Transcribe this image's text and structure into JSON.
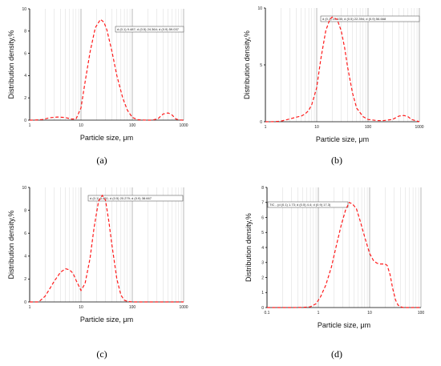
{
  "chart_data": [
    {
      "type": "line",
      "panel_label": "a",
      "x": [
        1,
        1.3,
        1.8,
        2.5,
        3.5,
        5,
        6.5,
        8,
        10,
        12,
        15,
        19,
        24,
        28,
        32,
        40,
        50,
        65,
        80,
        100,
        125,
        150,
        200,
        250,
        320,
        400,
        500,
        600,
        700,
        800,
        1000
      ],
      "series": [
        {
          "values": [
            0,
            0.01,
            0.06,
            0.22,
            0.28,
            0.23,
            0.1,
            0.1,
            1.1,
            3.4,
            6.1,
            8.3,
            9.05,
            8.8,
            8.1,
            6.2,
            4.0,
            2.0,
            0.9,
            0.25,
            0.05,
            0.01,
            0,
            0,
            0.15,
            0.55,
            0.65,
            0.45,
            0.12,
            0.02,
            0
          ]
        }
      ],
      "xlabel": "Particle size, μm",
      "ylabel": "Distribution density,%",
      "xscale": "log",
      "xlim": [
        1,
        1000
      ],
      "ylim": [
        0,
        10
      ],
      "x_ticks": [
        "1",
        "10",
        "100",
        "1000"
      ],
      "y_ticks": [
        "0",
        "2",
        "4",
        "6",
        "8",
        "10"
      ],
      "legend": "d (0.1) 9.487; d (0.5) 24.364; d (0.9) 59.037",
      "grid": true
    },
    {
      "type": "line",
      "panel_label": "b",
      "x": [
        1,
        1.5,
        2,
        3,
        4,
        5,
        6,
        7,
        8,
        10,
        12,
        15,
        18,
        20,
        25,
        30,
        35,
        40,
        50,
        60,
        80,
        100,
        150,
        200,
        300,
        400,
        500,
        600,
        700,
        1000
      ],
      "series": [
        {
          "values": [
            0,
            0.01,
            0.05,
            0.25,
            0.4,
            0.5,
            0.7,
            1.0,
            1.5,
            3.0,
            5.5,
            8.0,
            9.0,
            9.2,
            9.0,
            8.0,
            6.5,
            4.8,
            2.5,
            1.2,
            0.45,
            0.2,
            0.1,
            0.1,
            0.2,
            0.5,
            0.55,
            0.45,
            0.2,
            0
          ]
        }
      ],
      "xlabel": "Particle size, μm",
      "ylabel": "Distribution density,%",
      "xscale": "log",
      "xlim": [
        1,
        1000
      ],
      "ylim": [
        0,
        10
      ],
      "x_ticks": [
        "1",
        "10",
        "100",
        "1000"
      ],
      "y_ticks": [
        "0",
        "5",
        "10"
      ],
      "legend": "d (0.1) 10.435; d (0.5) 22.394; d (0.9) 56.668",
      "grid": true
    },
    {
      "type": "line",
      "panel_label": "c",
      "x": [
        1,
        1.5,
        2,
        2.5,
        3,
        4,
        5,
        6,
        7,
        8,
        10,
        12,
        15,
        18,
        22,
        26,
        30,
        35,
        40,
        50,
        60,
        70,
        80,
        100,
        1000
      ],
      "series": [
        {
          "values": [
            0,
            0,
            0.5,
            1.2,
            1.8,
            2.6,
            2.9,
            2.8,
            2.5,
            1.9,
            1.0,
            1.6,
            3.8,
            6.5,
            8.8,
            9.3,
            8.9,
            7.0,
            5.0,
            2.0,
            0.6,
            0.15,
            0.05,
            0,
            0
          ]
        }
      ],
      "xlabel": "Particle size, μm",
      "ylabel": "Distribution density,%",
      "xscale": "log",
      "xlim": [
        1,
        1000
      ],
      "ylim": [
        0,
        10
      ],
      "x_ticks": [
        "1",
        "10",
        "100",
        "1000"
      ],
      "y_ticks": [
        "0",
        "2",
        "4",
        "6",
        "8",
        "10"
      ],
      "legend": "d (0.1) 3.431; d (0.5) 20.279; d (0.9) 38.667",
      "grid": true
    },
    {
      "type": "line",
      "panel_label": "d",
      "x": [
        0.1,
        0.3,
        0.5,
        0.7,
        0.9,
        1.1,
        1.4,
        1.8,
        2.2,
        2.8,
        3.4,
        4.0,
        4.6,
        5.5,
        6.5,
        8,
        10,
        12,
        14,
        16,
        18,
        20,
        22,
        25,
        28,
        32,
        36,
        40,
        45,
        50,
        100
      ],
      "series": [
        {
          "values": [
            0,
            0,
            0.01,
            0.05,
            0.25,
            0.7,
            1.5,
            2.7,
            4.0,
            5.5,
            6.5,
            7.0,
            6.9,
            6.6,
            5.8,
            4.7,
            3.6,
            3.1,
            2.95,
            2.9,
            2.9,
            2.9,
            2.8,
            2.2,
            1.3,
            0.5,
            0.15,
            0.05,
            0,
            0,
            0
          ]
        }
      ],
      "xlabel": "Particle size, μm",
      "ylabel": "Distribution density,%",
      "xscale": "log",
      "xlim": [
        0.1,
        100
      ],
      "ylim": [
        0,
        8
      ],
      "x_ticks": [
        "0.1",
        "1",
        "10",
        "100"
      ],
      "y_ticks": [
        "0",
        "1",
        "2",
        "3",
        "4",
        "5",
        "6",
        "7",
        "8"
      ],
      "legend": "TIC - (d (0.1) 1.73; d (0.5) 4.4; d (0.9) 17.3)",
      "grid": true
    }
  ],
  "captions": [
    "(a)",
    "(b)",
    "(c)",
    "(d)"
  ],
  "colors": {
    "curve": "#ff1a1a",
    "grid_minor": "#d9d9d9",
    "grid_major": "#9a9a9a"
  }
}
